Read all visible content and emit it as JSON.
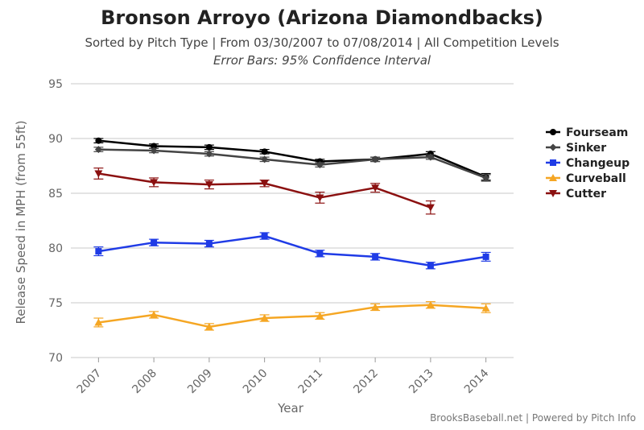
{
  "chart_data": {
    "type": "line",
    "title": "Bronson Arroyo (Arizona Diamondbacks)",
    "subtitle": "Sorted by Pitch Type | From 03/30/2007 to 07/08/2014 | All Competition Levels",
    "subtitle2": "Error Bars: 95% Confidence Interval",
    "xlabel": "Year",
    "ylabel": "Release Speed in MPH (from 55ft)",
    "x": [
      "2007",
      "2008",
      "2009",
      "2010",
      "2011",
      "2012",
      "2013",
      "2014"
    ],
    "yticks": [
      "95",
      "90",
      "85",
      "80",
      "75",
      "70"
    ],
    "ylim": [
      70,
      95
    ],
    "grid": true,
    "legend": "right",
    "series": [
      {
        "name": "Fourseam",
        "color": "#000000",
        "marker": "circle",
        "values": [
          89.8,
          89.3,
          89.2,
          88.8,
          87.9,
          88.1,
          88.6,
          86.5
        ],
        "err": [
          0.2,
          0.2,
          0.2,
          0.2,
          0.2,
          0.2,
          0.2,
          0.3
        ]
      },
      {
        "name": "Sinker",
        "color": "#444444",
        "marker": "diamond",
        "values": [
          89.0,
          88.9,
          88.6,
          88.1,
          87.6,
          88.1,
          88.3,
          86.4
        ],
        "err": [
          0.2,
          0.2,
          0.2,
          0.2,
          0.2,
          0.2,
          0.2,
          0.3
        ]
      },
      {
        "name": "Changeup",
        "color": "#1f3be6",
        "marker": "square",
        "values": [
          79.7,
          80.5,
          80.4,
          81.1,
          79.5,
          79.2,
          78.4,
          79.2
        ],
        "err": [
          0.4,
          0.3,
          0.3,
          0.3,
          0.3,
          0.3,
          0.3,
          0.4
        ]
      },
      {
        "name": "Curveball",
        "color": "#f5a623",
        "marker": "triangle",
        "values": [
          73.2,
          73.9,
          72.8,
          73.6,
          73.8,
          74.6,
          74.8,
          74.5
        ],
        "err": [
          0.4,
          0.3,
          0.3,
          0.3,
          0.3,
          0.3,
          0.3,
          0.4
        ]
      },
      {
        "name": "Cutter",
        "color": "#8b1010",
        "marker": "triangle-down",
        "values": [
          86.8,
          86.0,
          85.8,
          85.9,
          84.6,
          85.5,
          83.7,
          null
        ],
        "err": [
          0.5,
          0.4,
          0.4,
          0.3,
          0.5,
          0.4,
          0.6,
          null
        ]
      }
    ]
  },
  "footer": {
    "credit": "BrooksBaseball.net | Powered by Pitch Info"
  }
}
